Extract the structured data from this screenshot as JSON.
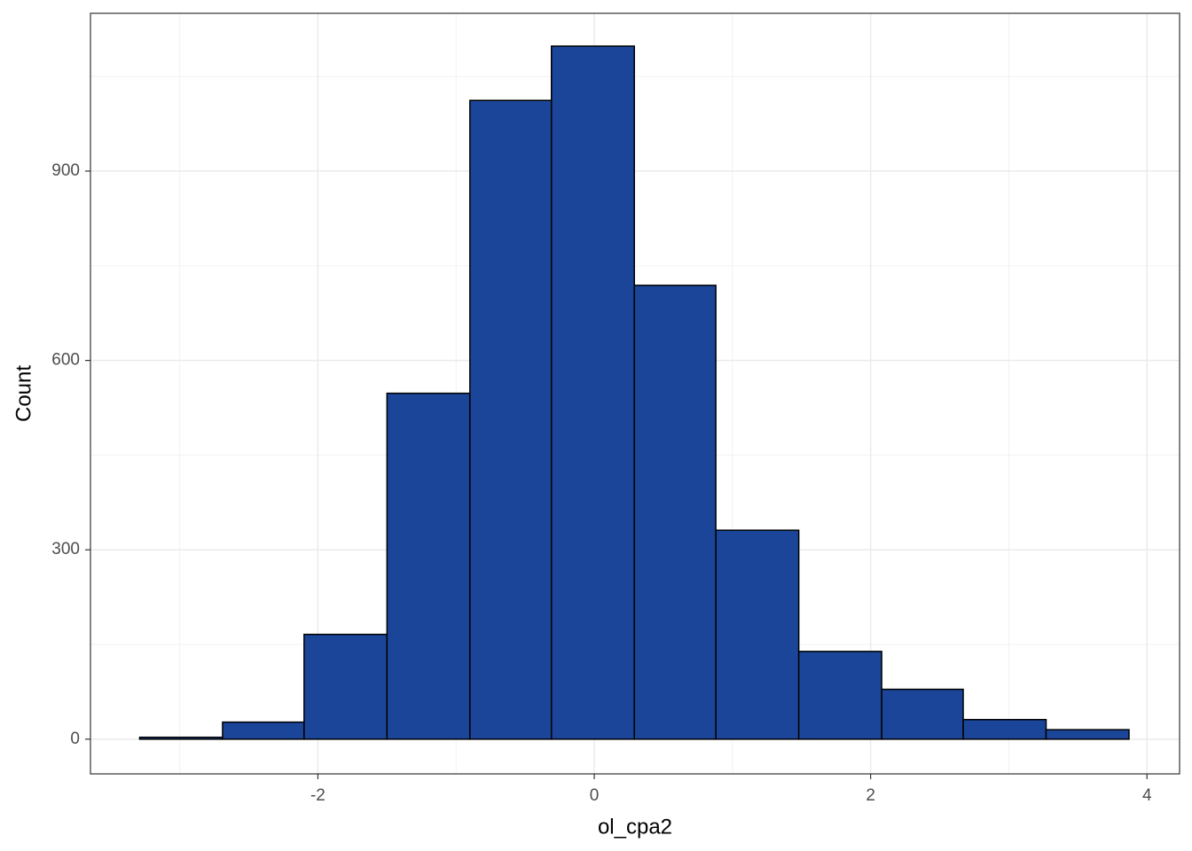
{
  "chart_data": {
    "type": "histogram",
    "x_label": "ol_cpa2",
    "y_label": "Count",
    "bins": [
      -3.29,
      -2.69,
      -2.1,
      -1.5,
      -0.9,
      -0.31,
      0.29,
      0.88,
      1.48,
      2.08,
      2.67,
      3.27,
      3.87
    ],
    "counts": [
      3,
      27,
      166,
      548,
      1012,
      1098,
      719,
      331,
      139,
      79,
      31,
      15
    ],
    "color": "#1a4599",
    "edge_color": "#000000",
    "xlim": [
      -3.646,
      4.236
    ],
    "ylim": [
      -55,
      1150
    ],
    "xticks": [
      -2,
      0,
      2,
      4
    ],
    "yticks": [
      0,
      300,
      600,
      900
    ],
    "x_minor_ticks": [
      -3,
      -1,
      1,
      3
    ],
    "y_minor_ticks": [
      150,
      450,
      750,
      1050
    ],
    "grid": true
  }
}
